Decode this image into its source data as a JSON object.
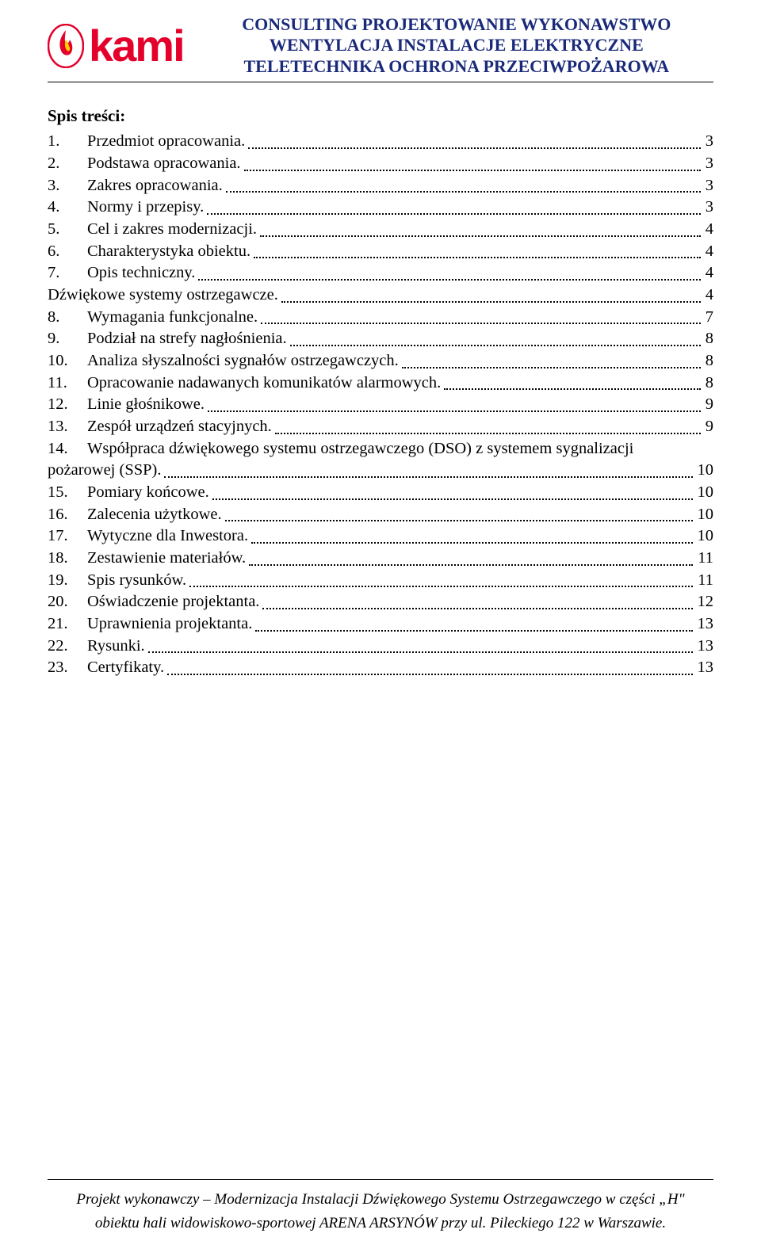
{
  "header": {
    "logo_text": "kami",
    "line1": "CONSULTING PROJEKTOWANIE WYKONAWSTWO",
    "line2": "WENTYLACJA INSTALACJE ELEKTRYCZNE",
    "line3": "TELETECHNIKA OCHRONA PRZECIWPOŻAROWA",
    "logo_color": "#e4002b",
    "title_color": "#1a2a7a"
  },
  "toc_title": "Spis treści:",
  "toc": [
    {
      "num": "1.",
      "label": "Przedmiot opracowania.",
      "page": "3"
    },
    {
      "num": "2.",
      "label": "Podstawa opracowania.",
      "page": "3"
    },
    {
      "num": "3.",
      "label": "Zakres opracowania.",
      "page": "3"
    },
    {
      "num": "4.",
      "label": "Normy i przepisy.",
      "page": "3"
    },
    {
      "num": "5.",
      "label": "Cel i zakres modernizacji.",
      "page": "4"
    },
    {
      "num": "6.",
      "label": "Charakterystyka obiektu.",
      "page": "4"
    },
    {
      "num": "7.",
      "label": "Opis techniczny.",
      "page": "4"
    },
    {
      "num": "",
      "label": "Dźwiękowe systemy ostrzegawcze.",
      "page": "4",
      "no_indent": true
    },
    {
      "num": "8.",
      "label": "Wymagania funkcjonalne.",
      "page": "7"
    },
    {
      "num": "9.",
      "label": "Podział na strefy nagłośnienia.",
      "page": "8"
    },
    {
      "num": "10.",
      "label": "Analiza słyszalności sygnałów ostrzegawczych.",
      "page": "8"
    },
    {
      "num": "11.",
      "label": "Opracowanie nadawanych komunikatów alarmowych.",
      "page": "8"
    },
    {
      "num": "12.",
      "label": "Linie głośnikowe.",
      "page": "9"
    },
    {
      "num": "13.",
      "label": "Zespół urządzeń stacyjnych.",
      "page": "9"
    },
    {
      "num": "14.",
      "label_line1": "Współpraca dźwiękowego systemu ostrzegawczego (DSO) z systemem sygnalizacji",
      "label_line2": "pożarowej (SSP).",
      "page": "10",
      "multiline": true
    },
    {
      "num": "15.",
      "label": "Pomiary końcowe.",
      "page": "10"
    },
    {
      "num": "16.",
      "label": "Zalecenia użytkowe.",
      "page": "10"
    },
    {
      "num": "17.",
      "label": "Wytyczne dla Inwestora.",
      "page": "10"
    },
    {
      "num": "18.",
      "label": "Zestawienie materiałów.",
      "page": "11"
    },
    {
      "num": "19.",
      "label": "Spis rysunków.",
      "page": "11"
    },
    {
      "num": "20.",
      "label": "Oświadczenie projektanta.",
      "page": "12"
    },
    {
      "num": "21.",
      "label": "Uprawnienia projektanta.",
      "page": "13"
    },
    {
      "num": "22.",
      "label": "Rysunki.",
      "page": "13"
    },
    {
      "num": "23.",
      "label": "Certyfikaty.",
      "page": "13"
    }
  ],
  "footer": {
    "line1": "Projekt wykonawczy – Modernizacja Instalacji Dźwiękowego Systemu Ostrzegawczego w części „H\"",
    "line2": "obiektu hali widowiskowo-sportowej ARENA ARSYNÓW przy ul. Pileckiego 122 w Warszawie."
  }
}
